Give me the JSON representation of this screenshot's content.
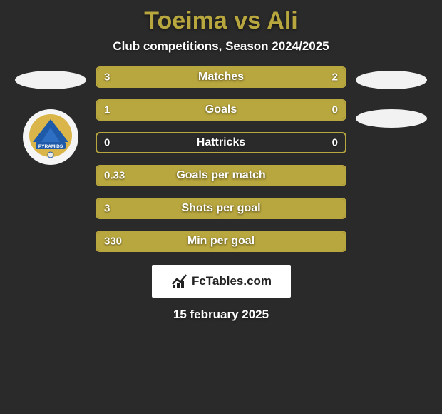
{
  "title_color": "#b8a63e",
  "background_color": "#2a2a2a",
  "header": {
    "title": "Toeima vs Ali",
    "subtitle": "Club competitions, Season 2024/2025"
  },
  "left_side": {
    "player_placeholder": true,
    "club_badge_label": "PYRAMIDS",
    "club_badge_colors": {
      "outer": "#d9b54a",
      "inner": "#1e5aa8",
      "text": "#ffffff"
    }
  },
  "right_side": {
    "player_placeholder": true,
    "club_placeholder": true
  },
  "bars": {
    "border_color": "#b8a63e",
    "fill_color": "#b8a63e",
    "label_fontsize": 16,
    "value_fontsize": 15,
    "rows": [
      {
        "label": "Matches",
        "left": "3",
        "right": "2",
        "left_pct": 60,
        "right_pct": 40
      },
      {
        "label": "Goals",
        "left": "1",
        "right": "0",
        "left_pct": 100,
        "right_pct": 0
      },
      {
        "label": "Hattricks",
        "left": "0",
        "right": "0",
        "left_pct": 0,
        "right_pct": 0
      },
      {
        "label": "Goals per match",
        "left": "0.33",
        "right": "",
        "left_pct": 100,
        "right_pct": 0
      },
      {
        "label": "Shots per goal",
        "left": "3",
        "right": "",
        "left_pct": 100,
        "right_pct": 0
      },
      {
        "label": "Min per goal",
        "left": "330",
        "right": "",
        "left_pct": 100,
        "right_pct": 0
      }
    ]
  },
  "footer": {
    "logo_text": "FcTables.com",
    "date": "15 february 2025"
  }
}
